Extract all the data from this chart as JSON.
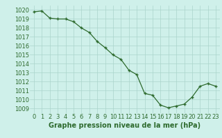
{
  "x": [
    0,
    1,
    2,
    3,
    4,
    5,
    6,
    7,
    8,
    9,
    10,
    11,
    12,
    13,
    14,
    15,
    16,
    17,
    18,
    19,
    20,
    21,
    22,
    23
  ],
  "y": [
    1019.8,
    1019.9,
    1019.1,
    1019.0,
    1019.0,
    1018.7,
    1018.0,
    1017.5,
    1016.5,
    1015.8,
    1015.0,
    1014.5,
    1013.3,
    1012.8,
    1010.7,
    1010.5,
    1009.4,
    1009.1,
    1009.3,
    1009.5,
    1010.3,
    1011.5,
    1011.8,
    1011.5
  ],
  "line_color": "#2d6a2d",
  "marker": "+",
  "marker_size": 3,
  "marker_linewidth": 1.0,
  "bg_color": "#cff0ea",
  "grid_color": "#aad4cb",
  "xlabel": "Graphe pression niveau de la mer (hPa)",
  "xlabel_fontsize": 7,
  "tick_fontsize": 6,
  "ylim": [
    1008.5,
    1020.5
  ],
  "yticks": [
    1009,
    1010,
    1011,
    1012,
    1013,
    1014,
    1015,
    1016,
    1017,
    1018,
    1019,
    1020
  ],
  "xlim": [
    -0.5,
    23.5
  ],
  "xticks": [
    0,
    1,
    2,
    3,
    4,
    5,
    6,
    7,
    8,
    9,
    10,
    11,
    12,
    13,
    14,
    15,
    16,
    17,
    18,
    19,
    20,
    21,
    22,
    23
  ],
  "linewidth": 0.9
}
